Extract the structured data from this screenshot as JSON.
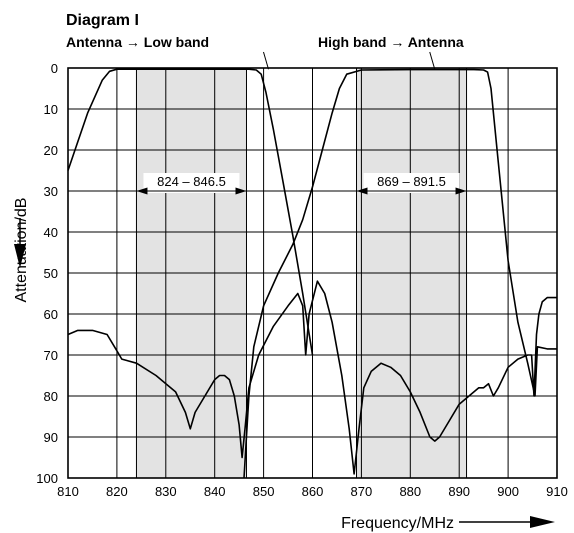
{
  "chart_data": {
    "type": "line",
    "title": "Diagram I",
    "xlabel": "Frequency/MHz",
    "ylabel": "Attenuation/dB",
    "xlim": [
      810,
      910
    ],
    "ylim": [
      0,
      100
    ],
    "y_inverted": true,
    "grid": true,
    "x_ticks": [
      810,
      820,
      830,
      840,
      850,
      860,
      870,
      880,
      890,
      900,
      910
    ],
    "y_ticks": [
      0,
      10,
      20,
      30,
      40,
      50,
      60,
      70,
      80,
      90,
      100
    ],
    "bands": [
      {
        "label": "824 – 846.5",
        "start": 824,
        "end": 846.5
      },
      {
        "label": "869 – 891.5",
        "start": 869,
        "end": 891.5
      }
    ],
    "series": [
      {
        "name": "Antenna → Low band",
        "label_x": 851,
        "x": [
          810,
          812,
          814,
          815.5,
          817,
          818.5,
          820,
          835,
          845,
          847,
          848.5,
          849.5,
          850.5,
          852,
          854,
          856,
          858,
          860
        ],
        "y": [
          25,
          18,
          11,
          7,
          3,
          0.8,
          0.3,
          0.3,
          0.3,
          0.3,
          0.5,
          1.5,
          6,
          15,
          28,
          41,
          55,
          70
        ]
      },
      {
        "name": "High band → Antenna",
        "label_x": 885,
        "x": [
          846,
          847,
          848,
          850,
          853,
          856,
          858,
          860,
          862,
          864,
          865.5,
          867,
          870,
          880,
          890,
          893,
          895,
          895.8,
          896.5,
          898,
          900,
          902,
          904,
          905.5,
          906,
          908,
          910
        ],
        "y": [
          100,
          80,
          68,
          58,
          50,
          43,
          37,
          29,
          20,
          11,
          5,
          1.5,
          0.5,
          0.4,
          0.4,
          0.4,
          0.5,
          1,
          5,
          23,
          47,
          62,
          72,
          80,
          68,
          68.5,
          68.5
        ]
      },
      {
        "name": "",
        "x": [
          810,
          812,
          815,
          818,
          819.5,
          821,
          824,
          828,
          832,
          834,
          835,
          836,
          838,
          840,
          841,
          842,
          843,
          844,
          845,
          845.6,
          846.2,
          847,
          849,
          852,
          855,
          857,
          858,
          858.6,
          859.3,
          861,
          862.5,
          864,
          866,
          867.5,
          868.5,
          869.5,
          870.5,
          872,
          874,
          876,
          878,
          880,
          882,
          884,
          885,
          886,
          888,
          890,
          892,
          894,
          895,
          896,
          897,
          898,
          900,
          902,
          904,
          904.8,
          905.3,
          905.8,
          906.3,
          907,
          908,
          910
        ],
        "y": [
          65,
          64,
          64,
          65,
          68,
          71,
          72,
          75,
          79,
          84,
          88,
          84,
          80,
          76,
          75,
          75,
          76,
          80,
          87,
          95,
          88,
          78,
          70,
          63,
          58,
          55,
          58,
          70,
          60,
          52,
          55,
          62,
          75,
          88,
          99,
          88,
          78,
          74,
          72,
          73,
          75,
          79,
          84,
          90,
          91,
          90,
          86,
          82,
          80,
          78,
          78,
          77,
          80,
          78,
          73,
          71,
          70,
          70,
          80,
          65,
          60,
          57,
          56,
          56
        ]
      }
    ]
  }
}
